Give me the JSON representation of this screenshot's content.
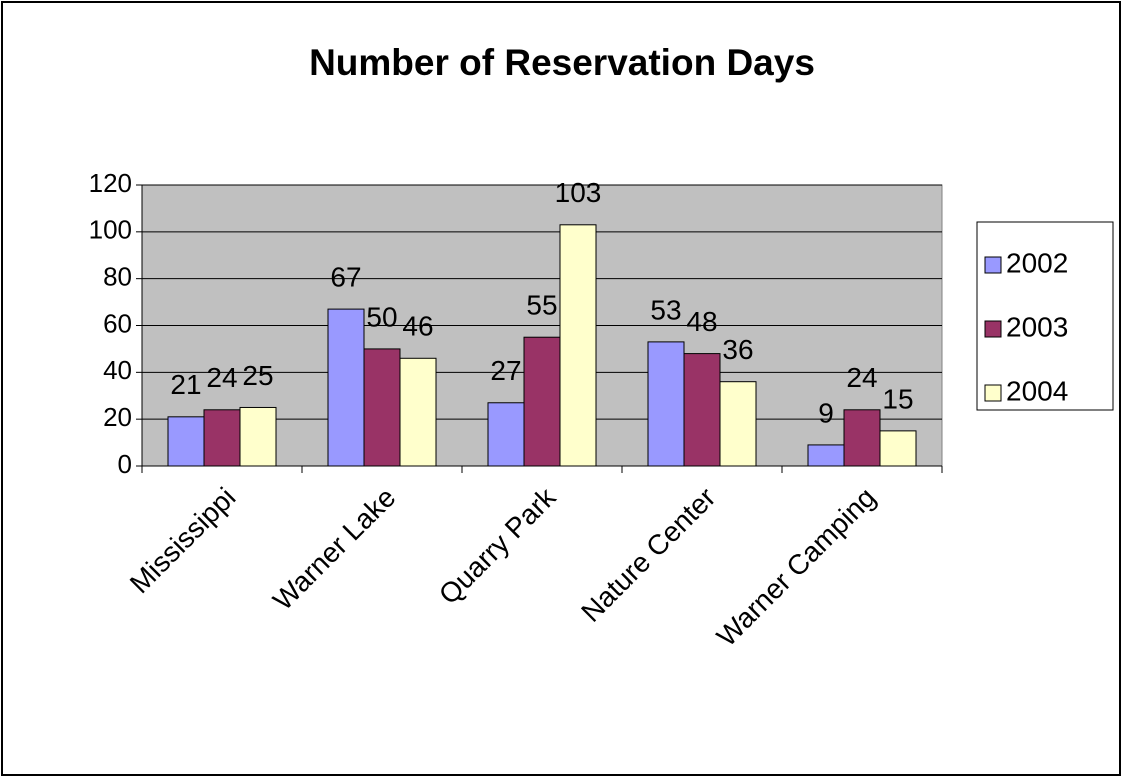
{
  "chart_data": {
    "type": "bar",
    "title": "Number of Reservation Days",
    "categories": [
      "Mississippi",
      "Warner Lake",
      "Quarry Park",
      "Nature Center",
      "Warner Camping"
    ],
    "series": [
      {
        "name": "2002",
        "color": "#9999ff",
        "values": [
          21,
          67,
          27,
          53,
          9
        ]
      },
      {
        "name": "2003",
        "color": "#993366",
        "values": [
          24,
          50,
          55,
          48,
          24
        ]
      },
      {
        "name": "2004",
        "color": "#ffffcc",
        "values": [
          25,
          46,
          103,
          36,
          15
        ]
      }
    ],
    "ylim": [
      0,
      120
    ],
    "yticks": [
      0,
      20,
      40,
      60,
      80,
      100,
      120
    ],
    "grid": true,
    "legend": "right",
    "plot_background": "#c0c0c0"
  }
}
